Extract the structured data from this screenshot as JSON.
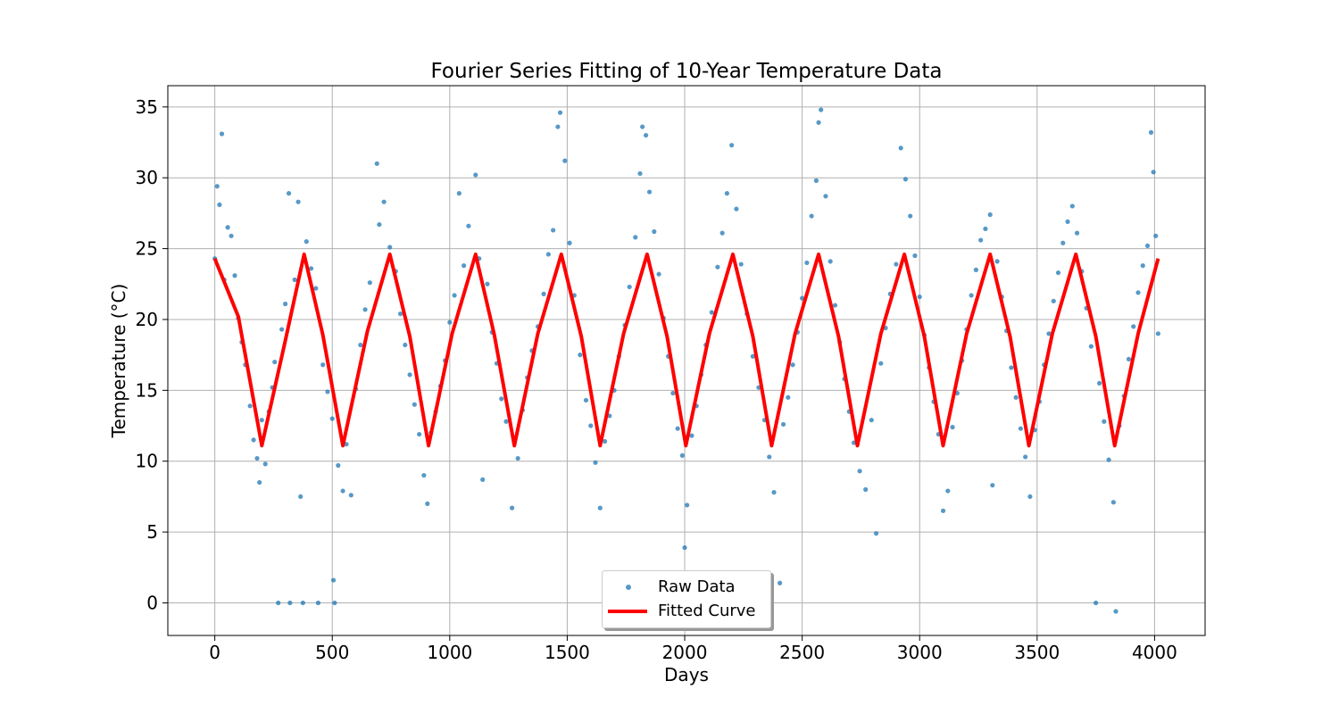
{
  "chart_data": {
    "type": "scatter",
    "title": "Fourier Series Fitting of 10-Year Temperature Data",
    "xlabel": "Days",
    "ylabel": "Temperature (°C)",
    "xlim": [
      -200,
      4215
    ],
    "ylim": [
      -2.3,
      36.5
    ],
    "xticks": [
      0,
      500,
      1000,
      1500,
      2000,
      2500,
      3000,
      3500,
      4000
    ],
    "yticks": [
      0,
      5,
      10,
      15,
      20,
      25,
      30,
      35
    ],
    "xtick_labels": [
      "0",
      "500",
      "1000",
      "1500",
      "2000",
      "2500",
      "3000",
      "3500",
      "4000"
    ],
    "ytick_labels": [
      "0",
      "5",
      "10",
      "15",
      "20",
      "25",
      "30",
      "35"
    ],
    "grid": true,
    "legend_position": "lower-center",
    "series": [
      {
        "name": "Raw Data",
        "type": "scatter",
        "color": "#1f77b4",
        "note_count": 4018,
        "points": [
          [
            0,
            24.3
          ],
          [
            10,
            29.4
          ],
          [
            20,
            28.1
          ],
          [
            30,
            33.1
          ],
          [
            40,
            22.8
          ],
          [
            55,
            26.5
          ],
          [
            70,
            25.9
          ],
          [
            85,
            23.1
          ],
          [
            100,
            20.1
          ],
          [
            115,
            18.4
          ],
          [
            130,
            16.8
          ],
          [
            150,
            13.9
          ],
          [
            165,
            11.5
          ],
          [
            180,
            10.2
          ],
          [
            190,
            8.5
          ],
          [
            200,
            12.9
          ],
          [
            215,
            9.8
          ],
          [
            230,
            13.5
          ],
          [
            245,
            15.2
          ],
          [
            255,
            17.0
          ],
          [
            270,
            0.0
          ],
          [
            285,
            19.3
          ],
          [
            300,
            21.1
          ],
          [
            315,
            28.9
          ],
          [
            320,
            0.0
          ],
          [
            340,
            22.8
          ],
          [
            355,
            28.3
          ],
          [
            365,
            7.5
          ],
          [
            375,
            0.0
          ],
          [
            390,
            25.5
          ],
          [
            410,
            23.6
          ],
          [
            430,
            22.2
          ],
          [
            440,
            0.0
          ],
          [
            460,
            16.8
          ],
          [
            480,
            14.9
          ],
          [
            500,
            13.0
          ],
          [
            505,
            1.6
          ],
          [
            510,
            0.0
          ],
          [
            525,
            9.7
          ],
          [
            545,
            7.9
          ],
          [
            560,
            11.2
          ],
          [
            580,
            7.6
          ],
          [
            600,
            15.1
          ],
          [
            620,
            18.2
          ],
          [
            640,
            20.7
          ],
          [
            660,
            22.6
          ],
          [
            690,
            31.0
          ],
          [
            700,
            26.7
          ],
          [
            720,
            28.3
          ],
          [
            745,
            25.1
          ],
          [
            770,
            23.4
          ],
          [
            790,
            20.4
          ],
          [
            810,
            18.2
          ],
          [
            830,
            16.1
          ],
          [
            850,
            14.0
          ],
          [
            870,
            11.9
          ],
          [
            890,
            9.0
          ],
          [
            905,
            7.0
          ],
          [
            920,
            12.0
          ],
          [
            940,
            13.5
          ],
          [
            960,
            15.3
          ],
          [
            980,
            17.1
          ],
          [
            1000,
            19.8
          ],
          [
            1020,
            21.7
          ],
          [
            1040,
            28.9
          ],
          [
            1060,
            23.8
          ],
          [
            1080,
            26.6
          ],
          [
            1110,
            30.2
          ],
          [
            1125,
            24.3
          ],
          [
            1140,
            8.7
          ],
          [
            1160,
            22.5
          ],
          [
            1180,
            19.1
          ],
          [
            1200,
            16.9
          ],
          [
            1220,
            14.4
          ],
          [
            1240,
            12.8
          ],
          [
            1265,
            6.7
          ],
          [
            1290,
            10.2
          ],
          [
            1310,
            13.6
          ],
          [
            1330,
            15.9
          ],
          [
            1350,
            17.8
          ],
          [
            1375,
            19.5
          ],
          [
            1400,
            21.8
          ],
          [
            1420,
            24.6
          ],
          [
            1440,
            26.3
          ],
          [
            1460,
            33.6
          ],
          [
            1470,
            34.6
          ],
          [
            1490,
            31.2
          ],
          [
            1510,
            25.4
          ],
          [
            1530,
            21.7
          ],
          [
            1555,
            17.5
          ],
          [
            1580,
            14.3
          ],
          [
            1600,
            12.5
          ],
          [
            1620,
            9.9
          ],
          [
            1640,
            6.7
          ],
          [
            1660,
            11.4
          ],
          [
            1680,
            13.2
          ],
          [
            1700,
            15.0
          ],
          [
            1720,
            17.4
          ],
          [
            1745,
            19.6
          ],
          [
            1765,
            22.3
          ],
          [
            1790,
            25.8
          ],
          [
            1810,
            30.3
          ],
          [
            1820,
            33.6
          ],
          [
            1835,
            33.0
          ],
          [
            1850,
            29.0
          ],
          [
            1870,
            26.2
          ],
          [
            1890,
            23.2
          ],
          [
            1910,
            20.1
          ],
          [
            1930,
            17.4
          ],
          [
            1950,
            14.8
          ],
          [
            1970,
            12.3
          ],
          [
            1990,
            10.4
          ],
          [
            2000,
            3.9
          ],
          [
            2010,
            6.9
          ],
          [
            2030,
            11.8
          ],
          [
            2050,
            13.9
          ],
          [
            2070,
            16.1
          ],
          [
            2090,
            18.2
          ],
          [
            2115,
            20.5
          ],
          [
            2140,
            23.7
          ],
          [
            2160,
            26.1
          ],
          [
            2180,
            28.9
          ],
          [
            2200,
            32.3
          ],
          [
            2220,
            27.8
          ],
          [
            2240,
            23.9
          ],
          [
            2265,
            20.4
          ],
          [
            2290,
            17.4
          ],
          [
            2315,
            15.2
          ],
          [
            2340,
            12.9
          ],
          [
            2360,
            10.3
          ],
          [
            2380,
            7.8
          ],
          [
            2405,
            1.4
          ],
          [
            2420,
            12.6
          ],
          [
            2440,
            14.5
          ],
          [
            2460,
            16.8
          ],
          [
            2480,
            19.1
          ],
          [
            2500,
            21.5
          ],
          [
            2520,
            24.0
          ],
          [
            2540,
            27.3
          ],
          [
            2560,
            29.8
          ],
          [
            2570,
            33.9
          ],
          [
            2580,
            34.8
          ],
          [
            2600,
            28.7
          ],
          [
            2620,
            24.1
          ],
          [
            2640,
            21.0
          ],
          [
            2660,
            18.4
          ],
          [
            2680,
            15.8
          ],
          [
            2700,
            13.5
          ],
          [
            2720,
            11.3
          ],
          [
            2745,
            9.3
          ],
          [
            2770,
            8.0
          ],
          [
            2795,
            12.9
          ],
          [
            2815,
            4.9
          ],
          [
            2835,
            16.9
          ],
          [
            2855,
            19.4
          ],
          [
            2875,
            21.8
          ],
          [
            2900,
            23.9
          ],
          [
            2920,
            32.1
          ],
          [
            2940,
            29.9
          ],
          [
            2960,
            27.3
          ],
          [
            2980,
            24.5
          ],
          [
            3000,
            21.6
          ],
          [
            3020,
            18.9
          ],
          [
            3040,
            16.6
          ],
          [
            3060,
            14.2
          ],
          [
            3080,
            11.9
          ],
          [
            3100,
            6.5
          ],
          [
            3120,
            7.9
          ],
          [
            3140,
            12.4
          ],
          [
            3160,
            14.8
          ],
          [
            3180,
            17.1
          ],
          [
            3200,
            19.3
          ],
          [
            3220,
            21.7
          ],
          [
            3240,
            23.5
          ],
          [
            3260,
            25.6
          ],
          [
            3280,
            26.4
          ],
          [
            3300,
            27.4
          ],
          [
            3310,
            8.3
          ],
          [
            3330,
            24.1
          ],
          [
            3350,
            21.6
          ],
          [
            3370,
            19.2
          ],
          [
            3390,
            16.6
          ],
          [
            3410,
            14.5
          ],
          [
            3430,
            12.3
          ],
          [
            3450,
            10.3
          ],
          [
            3470,
            7.5
          ],
          [
            3490,
            12.2
          ],
          [
            3510,
            14.2
          ],
          [
            3530,
            16.8
          ],
          [
            3550,
            19.0
          ],
          [
            3570,
            21.3
          ],
          [
            3590,
            23.3
          ],
          [
            3610,
            25.4
          ],
          [
            3630,
            26.9
          ],
          [
            3650,
            28.0
          ],
          [
            3670,
            26.1
          ],
          [
            3690,
            23.4
          ],
          [
            3710,
            20.8
          ],
          [
            3730,
            18.1
          ],
          [
            3750,
            0.0
          ],
          [
            3765,
            15.5
          ],
          [
            3785,
            12.8
          ],
          [
            3805,
            10.1
          ],
          [
            3825,
            7.1
          ],
          [
            3835,
            -0.6
          ],
          [
            3850,
            12.5
          ],
          [
            3870,
            14.6
          ],
          [
            3890,
            17.2
          ],
          [
            3910,
            19.5
          ],
          [
            3930,
            21.9
          ],
          [
            3950,
            23.8
          ],
          [
            3970,
            25.2
          ],
          [
            3985,
            33.2
          ],
          [
            3995,
            30.4
          ],
          [
            4005,
            25.9
          ],
          [
            4015,
            19.0
          ]
        ]
      },
      {
        "name": "Fitted Curve",
        "type": "line",
        "color": "#ff0000",
        "points": [
          [
            0,
            24.3
          ],
          [
            100,
            20.2
          ],
          [
            200,
            11.1
          ],
          [
            300,
            18.5
          ],
          [
            380,
            24.6
          ],
          [
            460,
            18.9
          ],
          [
            545,
            11.1
          ],
          [
            650,
            19.2
          ],
          [
            745,
            24.6
          ],
          [
            830,
            18.8
          ],
          [
            910,
            11.1
          ],
          [
            1010,
            19.0
          ],
          [
            1110,
            24.6
          ],
          [
            1190,
            18.9
          ],
          [
            1275,
            11.1
          ],
          [
            1375,
            19.0
          ],
          [
            1475,
            24.6
          ],
          [
            1560,
            18.8
          ],
          [
            1640,
            11.1
          ],
          [
            1740,
            19.0
          ],
          [
            1840,
            24.6
          ],
          [
            1925,
            18.8
          ],
          [
            2005,
            11.1
          ],
          [
            2105,
            19.0
          ],
          [
            2205,
            24.6
          ],
          [
            2290,
            18.8
          ],
          [
            2370,
            11.1
          ],
          [
            2470,
            19.0
          ],
          [
            2570,
            24.6
          ],
          [
            2655,
            18.8
          ],
          [
            2735,
            11.1
          ],
          [
            2835,
            19.0
          ],
          [
            2935,
            24.6
          ],
          [
            3020,
            18.8
          ],
          [
            3100,
            11.1
          ],
          [
            3200,
            19.0
          ],
          [
            3300,
            24.6
          ],
          [
            3385,
            18.8
          ],
          [
            3465,
            11.1
          ],
          [
            3565,
            19.0
          ],
          [
            3665,
            24.6
          ],
          [
            3750,
            18.8
          ],
          [
            3830,
            11.1
          ],
          [
            3930,
            19.0
          ],
          [
            4015,
            24.3
          ]
        ]
      }
    ]
  }
}
